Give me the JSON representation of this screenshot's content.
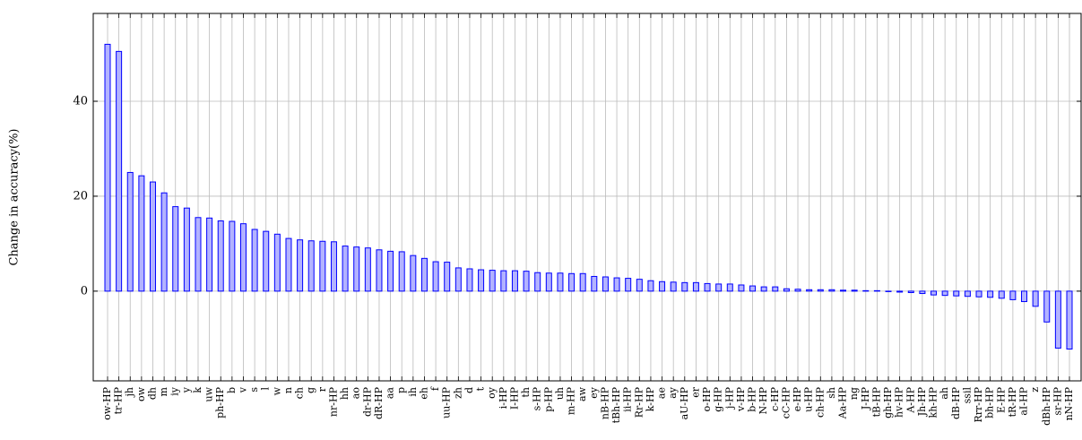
{
  "chart_data": {
    "type": "bar",
    "y_label": "Change in accuracy(%)",
    "categories": [
      "ow-HP",
      "tr-HP",
      "jh",
      "ow",
      "dh",
      "m",
      "iy",
      "y",
      "k",
      "uw",
      "ph-HP",
      "b",
      "v",
      "s",
      "l",
      "w",
      "n",
      "ch",
      "g",
      "r",
      "nr-HP",
      "hh",
      "ao",
      "dr-HP",
      "dR-HP",
      "aa",
      "p",
      "ih",
      "eh",
      "f",
      "uu-HP",
      "zh",
      "d",
      "t",
      "oy",
      "i-HP",
      "I-HP",
      "th",
      "s-HP",
      "p-HP",
      "uh",
      "m-HP",
      "aw",
      "ey",
      "nB-HP",
      "tBh-HP",
      "ii-HP",
      "Rr-HP",
      "k-HP",
      "ae",
      "ay",
      "aU-HP",
      "er",
      "o-HP",
      "g-HP",
      "j-HP",
      "v-HP",
      "b-HP",
      "N-HP",
      "c-HP",
      "cC-HP",
      "e-HP",
      "u-HP",
      "ch-HP",
      "sh",
      "Aa-HP",
      "ng",
      "J-HP",
      "tB-HP",
      "gh-HP",
      "hv-HP",
      "A-HP",
      "Jh-HP",
      "kh-HP",
      "ah",
      "dB-HP",
      "ssil",
      "Rrr-HP",
      "bh-HP",
      "E-HP",
      "tR-HP",
      "aI-HP",
      "z",
      "dBh-HP",
      "sr-HP",
      "nN-HP"
    ],
    "values": [
      52,
      50.5,
      25,
      24.3,
      23,
      20.7,
      17.8,
      17.5,
      15.5,
      15.4,
      14.8,
      14.7,
      14.2,
      13,
      12.6,
      12,
      11.1,
      10.8,
      10.6,
      10.5,
      10.4,
      9.5,
      9.3,
      9.1,
      8.7,
      8.4,
      8.3,
      7.5,
      6.9,
      6.2,
      6.1,
      4.9,
      4.7,
      4.5,
      4.4,
      4.3,
      4.3,
      4.2,
      3.9,
      3.8,
      3.8,
      3.7,
      3.7,
      3.1,
      3.0,
      2.8,
      2.7,
      2.5,
      2.2,
      2.0,
      1.9,
      1.8,
      1.8,
      1.6,
      1.5,
      1.5,
      1.3,
      1.1,
      0.9,
      0.9,
      0.5,
      0.4,
      0.3,
      0.3,
      0.3,
      0.2,
      0.2,
      0.1,
      0.1,
      -0.1,
      -0.2,
      -0.3,
      -0.5,
      -0.8,
      -0.9,
      -1.0,
      -1.1,
      -1.2,
      -1.3,
      -1.5,
      -1.8,
      -2.2,
      -3.2,
      -6.5,
      -12,
      -12.2
    ],
    "color": "#b3b3ff",
    "edge_color": "#0000ff",
    "ylim": [
      -18.9,
      58.5
    ],
    "yticks": [
      0,
      20,
      40
    ],
    "grid": true
  }
}
